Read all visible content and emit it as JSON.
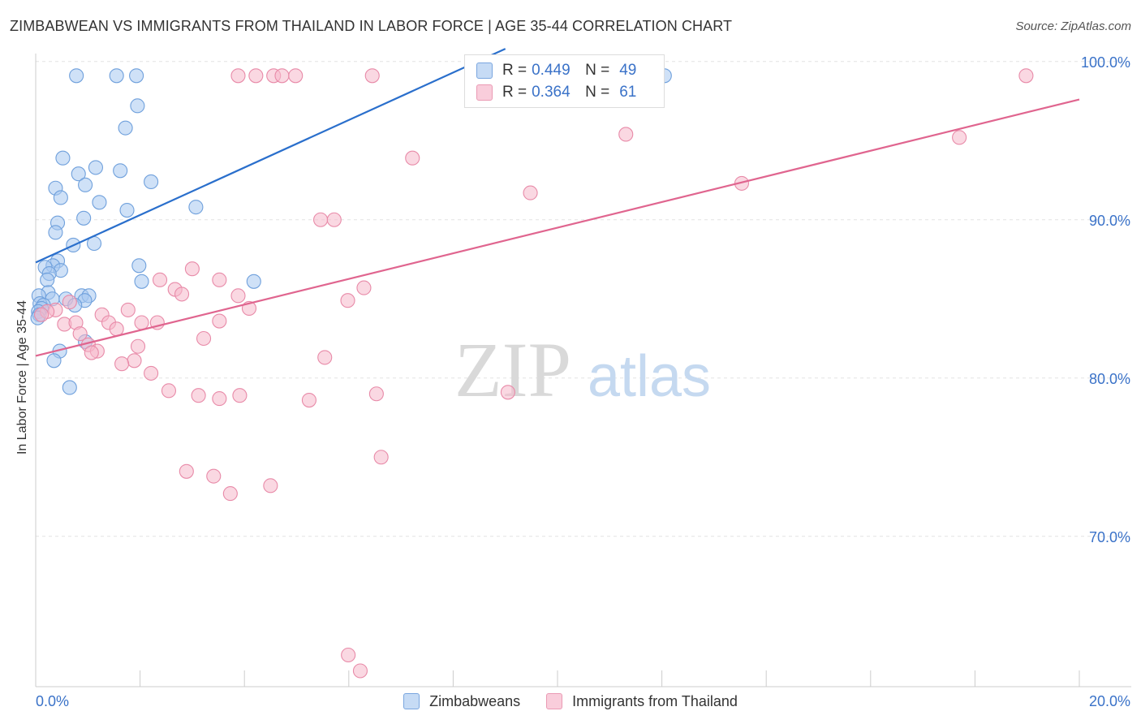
{
  "title": "ZIMBABWEAN VS IMMIGRANTS FROM THAILAND IN LABOR FORCE | AGE 35-44 CORRELATION CHART",
  "source": "Source: ZipAtlas.com",
  "watermark": {
    "zip": "ZIP",
    "atlas": "atlas"
  },
  "legend_top": {
    "rows": [
      {
        "r_label": "R = ",
        "r_value": "0.449",
        "n_label": "N = ",
        "n_value": "49",
        "color": "#a8c8f0"
      },
      {
        "r_label": "R = ",
        "r_value": "0.364",
        "n_label": "N = ",
        "n_value": "61",
        "color": "#f5b8cb"
      }
    ]
  },
  "chart_data": {
    "type": "scatter",
    "title": "ZIMBABWEAN VS IMMIGRANTS FROM THAILAND IN LABOR FORCE | AGE 35-44 CORRELATION CHART",
    "xlabel": "",
    "ylabel": "In Labor Force | Age 35-44",
    "xlim": [
      0,
      20
    ],
    "ylim": [
      60.5,
      100.5
    ],
    "x_tick_labels": [
      {
        "value": 0,
        "label": "0.0%"
      },
      {
        "value": 20,
        "label": "20.0%"
      }
    ],
    "y_tick_labels": [
      {
        "value": 100,
        "label": "100.0%"
      },
      {
        "value": 90,
        "label": "90.0%"
      },
      {
        "value": 80,
        "label": "80.0%"
      },
      {
        "value": 70,
        "label": "70.0%"
      }
    ],
    "grid": true,
    "legend_position": "bottom",
    "series": [
      {
        "name": "Zimbabweans",
        "color": "#6fa0dc",
        "fill": "#a8c8f0",
        "trend": {
          "x": [
            0.0,
            9.0
          ],
          "y": [
            87.3,
            100.8
          ],
          "color": "#2a6fcc"
        },
        "points": [
          [
            0.78,
            99.1
          ],
          [
            1.55,
            99.1
          ],
          [
            1.93,
            99.1
          ],
          [
            12.05,
            99.1
          ],
          [
            1.95,
            97.2
          ],
          [
            1.72,
            95.8
          ],
          [
            0.52,
            93.9
          ],
          [
            1.15,
            93.3
          ],
          [
            1.62,
            93.1
          ],
          [
            0.82,
            92.9
          ],
          [
            2.21,
            92.4
          ],
          [
            0.95,
            92.2
          ],
          [
            0.38,
            92.0
          ],
          [
            0.48,
            91.4
          ],
          [
            1.22,
            91.1
          ],
          [
            1.75,
            90.6
          ],
          [
            3.07,
            90.8
          ],
          [
            0.92,
            90.1
          ],
          [
            0.42,
            89.8
          ],
          [
            0.38,
            89.2
          ],
          [
            1.12,
            88.5
          ],
          [
            0.72,
            88.4
          ],
          [
            0.42,
            87.4
          ],
          [
            0.33,
            87.1
          ],
          [
            0.18,
            87.0
          ],
          [
            0.48,
            86.8
          ],
          [
            1.98,
            87.1
          ],
          [
            0.26,
            86.6
          ],
          [
            2.03,
            86.1
          ],
          [
            4.18,
            86.1
          ],
          [
            0.22,
            86.2
          ],
          [
            0.24,
            85.4
          ],
          [
            0.88,
            85.2
          ],
          [
            1.02,
            85.2
          ],
          [
            0.06,
            85.2
          ],
          [
            0.32,
            85.0
          ],
          [
            0.58,
            85.0
          ],
          [
            0.94,
            84.9
          ],
          [
            0.08,
            84.7
          ],
          [
            0.75,
            84.6
          ],
          [
            0.15,
            84.6
          ],
          [
            0.11,
            84.4
          ],
          [
            0.05,
            84.2
          ],
          [
            0.07,
            84.0
          ],
          [
            0.04,
            83.8
          ],
          [
            0.95,
            82.3
          ],
          [
            0.46,
            81.7
          ],
          [
            0.35,
            81.1
          ],
          [
            0.65,
            79.4
          ]
        ]
      },
      {
        "name": "Immigrants from Thailand",
        "color": "#e88aa8",
        "fill": "#f5b8cb",
        "trend": {
          "x": [
            0.0,
            20.0
          ],
          "y": [
            81.4,
            97.6
          ],
          "color": "#e0658f"
        },
        "points": [
          [
            3.88,
            99.1
          ],
          [
            4.22,
            99.1
          ],
          [
            4.56,
            99.1
          ],
          [
            4.72,
            99.1
          ],
          [
            4.98,
            99.1
          ],
          [
            6.45,
            99.1
          ],
          [
            9.48,
            99.1
          ],
          [
            18.98,
            99.1
          ],
          [
            11.31,
            95.4
          ],
          [
            17.7,
            95.2
          ],
          [
            7.22,
            93.9
          ],
          [
            13.53,
            92.3
          ],
          [
            9.48,
            91.7
          ],
          [
            5.46,
            90.0
          ],
          [
            5.72,
            90.0
          ],
          [
            3.0,
            86.9
          ],
          [
            2.38,
            86.2
          ],
          [
            3.52,
            86.2
          ],
          [
            6.29,
            85.7
          ],
          [
            2.67,
            85.6
          ],
          [
            2.8,
            85.3
          ],
          [
            3.88,
            85.2
          ],
          [
            5.98,
            84.9
          ],
          [
            0.65,
            84.8
          ],
          [
            4.09,
            84.4
          ],
          [
            1.77,
            84.3
          ],
          [
            0.38,
            84.3
          ],
          [
            0.22,
            84.2
          ],
          [
            0.11,
            84.0
          ],
          [
            1.27,
            84.0
          ],
          [
            3.52,
            83.6
          ],
          [
            2.03,
            83.5
          ],
          [
            2.33,
            83.5
          ],
          [
            0.55,
            83.4
          ],
          [
            0.77,
            83.5
          ],
          [
            1.4,
            83.5
          ],
          [
            1.55,
            83.1
          ],
          [
            0.85,
            82.8
          ],
          [
            3.22,
            82.5
          ],
          [
            1.01,
            82.1
          ],
          [
            1.96,
            82.0
          ],
          [
            5.54,
            81.3
          ],
          [
            1.18,
            81.7
          ],
          [
            1.07,
            81.6
          ],
          [
            1.89,
            81.1
          ],
          [
            1.65,
            80.9
          ],
          [
            2.21,
            80.3
          ],
          [
            2.55,
            79.2
          ],
          [
            9.05,
            79.1
          ],
          [
            3.12,
            78.9
          ],
          [
            3.91,
            78.9
          ],
          [
            3.52,
            78.7
          ],
          [
            6.53,
            79.0
          ],
          [
            5.24,
            78.6
          ],
          [
            6.62,
            75.0
          ],
          [
            2.89,
            74.1
          ],
          [
            3.41,
            73.8
          ],
          [
            4.5,
            73.2
          ],
          [
            3.73,
            72.7
          ],
          [
            5.99,
            62.5
          ],
          [
            6.22,
            61.5
          ]
        ]
      }
    ]
  }
}
